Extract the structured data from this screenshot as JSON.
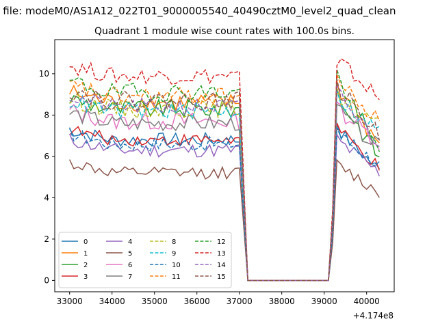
{
  "suptitle": "n file: modeM0/AS1A12_022T01_9000005540_40490cztM0_level2_quad_clean",
  "chart_data": {
    "type": "line",
    "title": "Quadrant 1 module wise count rates with 100.0s bins.",
    "xlabel": "",
    "ylabel": "",
    "x_offset_label": "+4.174e8",
    "xlim": [
      32650,
      40650
    ],
    "ylim": [
      -0.55,
      11.65
    ],
    "xticks": [
      33000,
      34000,
      35000,
      36000,
      37000,
      38000,
      39000,
      40000
    ],
    "yticks": [
      0,
      2,
      4,
      6,
      8,
      10
    ],
    "grid": false,
    "legend": {
      "placement": "lower-left",
      "columns": 4
    },
    "x": {
      "start": 33000,
      "step": 100,
      "first_segment_points": 41,
      "gap_start": 37200,
      "gap_end": 39100,
      "resume": 39200,
      "end": 40300
    },
    "series": [
      {
        "name": "0",
        "color": "#1f77b4",
        "style": "solid",
        "mean": 6.8,
        "amp": 0.35,
        "end": 5.3
      },
      {
        "name": "1",
        "color": "#ff7f0e",
        "style": "solid",
        "mean": 8.6,
        "amp": 0.45,
        "end": 6.6
      },
      {
        "name": "2",
        "color": "#2ca02c",
        "style": "solid",
        "mean": 8.3,
        "amp": 0.45,
        "end": 6.0
      },
      {
        "name": "3",
        "color": "#d62728",
        "style": "solid",
        "mean": 6.8,
        "amp": 0.3,
        "end": 5.4
      },
      {
        "name": "4",
        "color": "#9467bd",
        "style": "solid",
        "mean": 6.3,
        "amp": 0.35,
        "end": 5.2
      },
      {
        "name": "5",
        "color": "#8c564b",
        "style": "solid",
        "mean": 5.2,
        "amp": 0.3,
        "end": 4.2
      },
      {
        "name": "6",
        "color": "#e377c2",
        "style": "solid",
        "mean": 7.7,
        "amp": 0.45,
        "end": 6.7
      },
      {
        "name": "7",
        "color": "#7f7f7f",
        "style": "solid",
        "mean": 7.6,
        "amp": 0.4,
        "end": 6.4
      },
      {
        "name": "8",
        "color": "#bcbd22",
        "style": "dashed",
        "mean": 8.3,
        "amp": 0.45,
        "end": 7.5
      },
      {
        "name": "9",
        "color": "#17becf",
        "style": "dashed",
        "mean": 8.2,
        "amp": 0.4,
        "end": 7.2
      },
      {
        "name": "10",
        "color": "#1f77b4",
        "style": "dashed",
        "mean": 6.6,
        "amp": 0.35,
        "end": 5.6
      },
      {
        "name": "11",
        "color": "#ff7f0e",
        "style": "dashed",
        "mean": 8.9,
        "amp": 0.45,
        "end": 7.6
      },
      {
        "name": "12",
        "color": "#2ca02c",
        "style": "dashed",
        "mean": 9.1,
        "amp": 0.45,
        "end": 6.2
      },
      {
        "name": "13",
        "color": "#d62728",
        "style": "dashed",
        "mean": 9.9,
        "amp": 0.4,
        "end": 8.8
      },
      {
        "name": "14",
        "color": "#9467bd",
        "style": "dashed",
        "mean": 8.4,
        "amp": 0.4,
        "end": 6.6
      },
      {
        "name": "15",
        "color": "#8c564b",
        "style": "dashed",
        "mean": 8.7,
        "amp": 0.45,
        "end": 7.0
      }
    ]
  }
}
